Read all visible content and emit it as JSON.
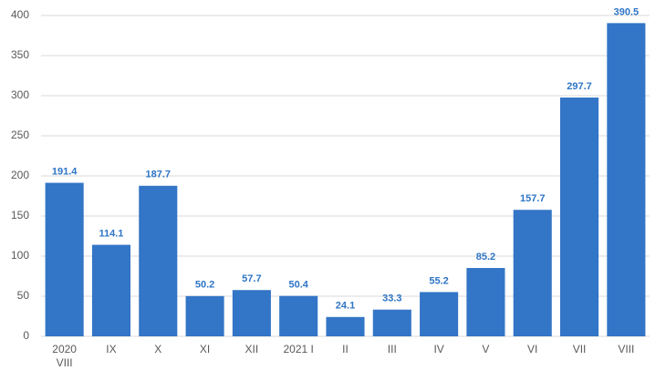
{
  "chart_data": {
    "type": "bar",
    "categories": [
      "2020\nVIII",
      "IX",
      "X",
      "XI",
      "XII",
      "2021 I",
      "II",
      "III",
      "IV",
      "V",
      "VI",
      "VII",
      "VIII"
    ],
    "values": [
      191.4,
      114.1,
      187.7,
      50.2,
      57.7,
      50.4,
      24.1,
      33.3,
      55.2,
      85.2,
      157.7,
      297.7,
      390.5
    ],
    "color": "#3375c6",
    "ylim": [
      0,
      400
    ],
    "yticks": [
      0,
      50,
      100,
      150,
      200,
      250,
      300,
      350,
      400
    ],
    "grid": true
  }
}
